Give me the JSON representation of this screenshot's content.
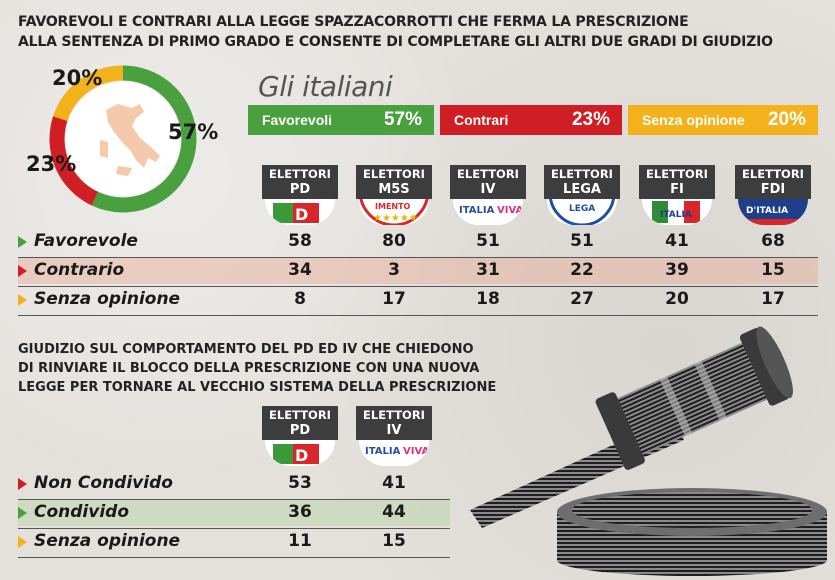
{
  "title_lines": [
    "FAVOREVOLI E CONTRARI ALLA LEGGE SPAZZACORROTTI CHE FERMA LA PRESCRIZIONE",
    "ALLA SENTENZA DI PRIMO GRADO E CONSENTE DI COMPLETARE GLI ALTRI DUE GRADI DI GIUDIZIO"
  ],
  "colors": {
    "green": "#4aa03f",
    "red": "#cf1f25",
    "yellow": "#f3b21b",
    "dark": "#3d3d3d"
  },
  "summary": {
    "heading": "Gli italiani",
    "items": [
      {
        "label": "Favorevoli",
        "value": "57%",
        "color": "#4aa03f"
      },
      {
        "label": "Contrari",
        "value": "23%",
        "color": "#cf1f25"
      },
      {
        "label": "Senza opinione",
        "value": "20%",
        "color": "#f3b21b"
      }
    ]
  },
  "donut_labels": {
    "favorevoli": "57%",
    "contrari": "23%",
    "senza": "20%"
  },
  "table1": {
    "headers": [
      {
        "l1": "ELETTORI",
        "l2": "PD",
        "logo": "pd-logo"
      },
      {
        "l1": "ELETTORI",
        "l2": "M5S",
        "logo": "m5s-logo"
      },
      {
        "l1": "ELETTORI",
        "l2": "IV",
        "logo": "iv-logo"
      },
      {
        "l1": "ELETTORI",
        "l2": "LEGA",
        "logo": "lega-logo"
      },
      {
        "l1": "ELETTORI",
        "l2": "FI",
        "logo": "fi-logo"
      },
      {
        "l1": "ELETTORI",
        "l2": "FDI",
        "logo": "fdi-logo"
      }
    ],
    "rows": [
      {
        "label": "Favorevole",
        "values": [
          "58",
          "80",
          "51",
          "51",
          "41",
          "68"
        ]
      },
      {
        "label": "Contrario",
        "values": [
          "34",
          "3",
          "31",
          "22",
          "39",
          "15"
        ]
      },
      {
        "label": "Senza opinione",
        "values": [
          "8",
          "17",
          "18",
          "27",
          "20",
          "17"
        ]
      }
    ]
  },
  "sub_title_lines": [
    "GIUDIZIO SUL COMPORTAMENTO DEL PD ED IV CHE CHIEDONO",
    "DI RINVIARE IL BLOCCO DELLA PRESCRIZIONE CON UNA NUOVA",
    "LEGGE PER TORNARE AL VECCHIO SISTEMA DELLA PRESCRIZIONE"
  ],
  "table2": {
    "headers": [
      {
        "l1": "ELETTORI",
        "l2": "PD",
        "logo": "pd-logo"
      },
      {
        "l1": "ELETTORI",
        "l2": "IV",
        "logo": "iv-logo"
      }
    ],
    "rows": [
      {
        "label": "Non Condivido",
        "values": [
          "53",
          "41"
        ]
      },
      {
        "label": "Condivido",
        "values": [
          "36",
          "44"
        ]
      },
      {
        "label": "Senza opinione",
        "values": [
          "11",
          "15"
        ]
      }
    ]
  },
  "chart_data": [
    {
      "type": "pie",
      "categories": [
        "Favorevoli",
        "Contrari",
        "Senza opinione"
      ],
      "values": [
        57,
        23,
        20
      ],
      "title": "Gli italiani"
    },
    {
      "type": "table",
      "title": "FAVOREVOLI E CONTRARI ALLA LEGGE SPAZZACORROTTI CHE FERMA LA PRESCRIZIONE ALLA SENTENZA DI PRIMO GRADO E CONSENTE DI COMPLETARE GLI ALTRI DUE GRADI DI GIUDIZIO",
      "categories": [
        "ELETTORI PD",
        "ELETTORI M5S",
        "ELETTORI IV",
        "ELETTORI LEGA",
        "ELETTORI FI",
        "ELETTORI FDI"
      ],
      "series": [
        {
          "name": "Favorevole",
          "values": [
            58,
            80,
            51,
            51,
            41,
            68
          ]
        },
        {
          "name": "Contrario",
          "values": [
            34,
            3,
            31,
            22,
            39,
            15
          ]
        },
        {
          "name": "Senza opinione",
          "values": [
            8,
            17,
            18,
            27,
            20,
            17
          ]
        }
      ]
    },
    {
      "type": "table",
      "title": "GIUDIZIO SUL COMPORTAMENTO DEL PD ED IV CHE CHIEDONO DI RINVIARE IL BLOCCO DELLA PRESCRIZIONE CON UNA NUOVA LEGGE PER TORNARE AL VECCHIO SISTEMA DELLA PRESCRIZIONE",
      "categories": [
        "ELETTORI PD",
        "ELETTORI IV"
      ],
      "series": [
        {
          "name": "Non Condivido",
          "values": [
            53,
            41
          ]
        },
        {
          "name": "Condivido",
          "values": [
            36,
            44
          ]
        },
        {
          "name": "Senza opinione",
          "values": [
            11,
            15
          ]
        }
      ]
    }
  ]
}
